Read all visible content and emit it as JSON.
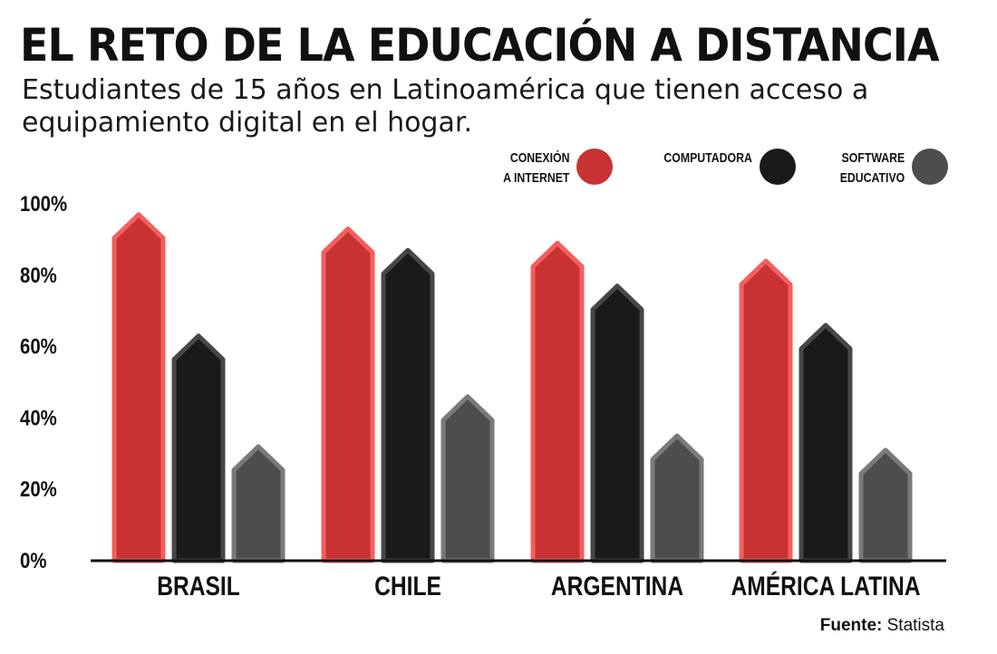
{
  "title": "EL RETO DE LA EDUCACIÓN A DISTANCIA",
  "subtitle": "Estudiantes de 15 años en Latinoamérica que tienen acceso a equipamiento digital en el hogar.",
  "legend": [
    {
      "line1": "CONEXIÓN",
      "line2": "A INTERNET",
      "color": "#c83232"
    },
    {
      "line1": "COMPUTADORA",
      "line2": "",
      "color": "#1a1a1a"
    },
    {
      "line1": "SOFTWARE",
      "line2": "EDUCATIVO",
      "color": "#4d4d4d"
    }
  ],
  "source": {
    "label": "Fuente:",
    "name": "Statista"
  },
  "chart_data": {
    "type": "bar",
    "categories": [
      "BRASIL",
      "CHILE",
      "ARGENTINA",
      "AMÉRICA LATINA"
    ],
    "series": [
      {
        "name": "CONEXIÓN A INTERNET",
        "color": "#c83232",
        "values": [
          97,
          93,
          89,
          84
        ]
      },
      {
        "name": "COMPUTADORA",
        "color": "#1a1a1a",
        "values": [
          63,
          87,
          77,
          66
        ]
      },
      {
        "name": "SOFTWARE EDUCATIVO",
        "color": "#4d4d4d",
        "values": [
          32,
          46,
          35,
          31
        ]
      }
    ],
    "ylim": [
      0,
      100
    ],
    "yticks": [
      "0%",
      "20%",
      "40%",
      "60%",
      "80%",
      "100%"
    ],
    "grid": false,
    "legend_position": "top-right"
  }
}
